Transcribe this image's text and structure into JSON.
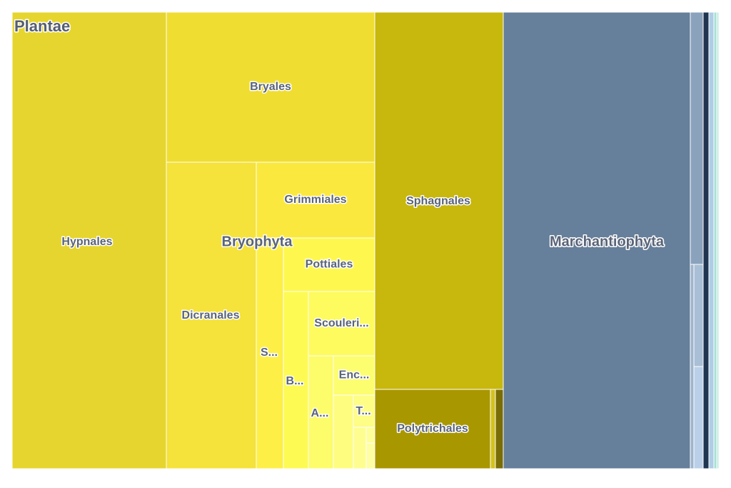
{
  "chart_data": {
    "type": "treemap",
    "root": "Plantae",
    "group": "Bryophyta",
    "nodes": [
      {
        "name": "Hypnales",
        "color": "#e6d52e"
      },
      {
        "name": "Bryales",
        "color": "#f0dd32"
      },
      {
        "name": "Dicranales",
        "color": "#f5e23a"
      },
      {
        "name": "Grimmiales",
        "color": "#fbe83e"
      },
      {
        "name": "S...",
        "color": "#fdef46"
      },
      {
        "name": "Pottiales",
        "color": "#fef84e"
      },
      {
        "name": "B...",
        "color": "#fdfa54"
      },
      {
        "name": "Scouleri...",
        "color": "#fdfb5e"
      },
      {
        "name": "A...",
        "color": "#fdfc6a"
      },
      {
        "name": "Enc...",
        "color": "#fdfd70"
      },
      {
        "color": "#fefd80"
      },
      {
        "name": "T...",
        "color": "#fefd86"
      },
      {
        "color": "#fefd90"
      },
      {
        "color": "#fefe9a"
      },
      {
        "color": "#fefea4"
      },
      {
        "name": "Sphagnales",
        "color": "#c8b70c"
      },
      {
        "name": "Polytrichales",
        "color": "#a99700"
      },
      {
        "color": "#d4c21d"
      },
      {
        "color": "#7a6d06"
      },
      {
        "name": "Marchantiophyta",
        "color": "#667f9a"
      },
      {
        "color": "#8aa2bc"
      },
      {
        "color": "#9fb5cc"
      },
      {
        "color": "#a9bfd6"
      },
      {
        "color": "#bad0e8"
      },
      {
        "color": "#1f3550"
      },
      {
        "color": "#b0cde6"
      },
      {
        "color": "#a9e0d4"
      },
      {
        "color": "#c0ece0"
      }
    ]
  }
}
